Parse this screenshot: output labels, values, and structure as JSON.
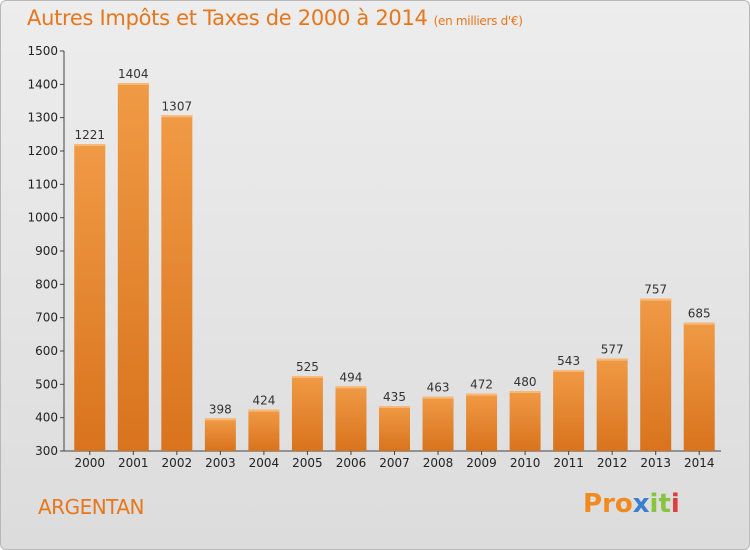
{
  "chart_data": {
    "type": "bar",
    "title": "Autres Impôts et Taxes de 2000 à 2014",
    "subtitle": "(en milliers d'€)",
    "categories": [
      "2000",
      "2001",
      "2002",
      "2003",
      "2004",
      "2005",
      "2006",
      "2007",
      "2008",
      "2009",
      "2010",
      "2011",
      "2012",
      "2013",
      "2014"
    ],
    "values": [
      1221,
      1404,
      1307,
      398,
      424,
      525,
      494,
      435,
      463,
      472,
      480,
      543,
      577,
      757,
      685
    ],
    "ylim": [
      300,
      1500
    ],
    "yticks": [
      300,
      400,
      500,
      600,
      700,
      800,
      900,
      1000,
      1100,
      1200,
      1300,
      1400,
      1500
    ],
    "grid": false,
    "bar_color": "#f09a45",
    "bar_color_dark": "#d9731d"
  },
  "footer": {
    "city": "ARGENTAN",
    "logo": [
      "P",
      "r",
      "o",
      "x",
      "i",
      "t",
      "i"
    ],
    "logo_colors": [
      "#f28a1e",
      "#f28a1e",
      "#f28a1e",
      "#3a7fd0",
      "#8ac43f",
      "#8ac43f",
      "#e23c3c"
    ]
  }
}
